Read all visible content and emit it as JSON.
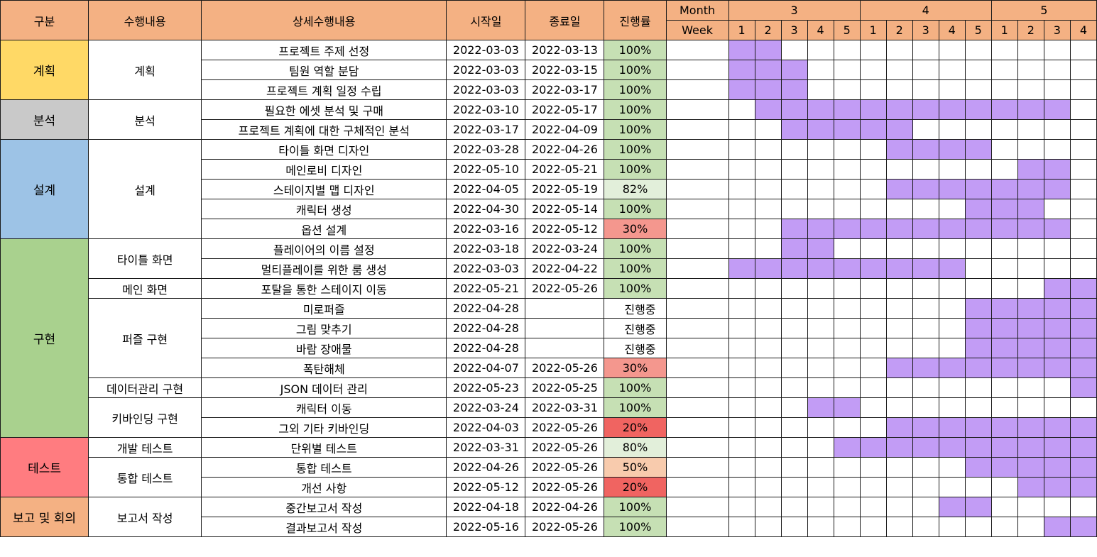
{
  "colors": {
    "header": "#f4b183",
    "bar": "#c29cf5",
    "category": {
      "계획": "#ffd966",
      "분석": "#c9c9c9",
      "설계": "#9dc3e6",
      "구현": "#a9d18e",
      "테스트": "#ff7c80",
      "보고 및 회의": "#f4b183"
    },
    "progress": {
      "100%": "#c6e0b4",
      "82%": "#e2efda",
      "80%": "#e2efda",
      "50%": "#f8cbad",
      "30%": "#f4978e",
      "20%": "#f06461",
      "진행중": "#ffffff"
    }
  },
  "headers": {
    "category": "구분",
    "task": "수행내용",
    "detail": "상세수행내용",
    "start": "시작일",
    "end": "종료일",
    "progress": "진행률",
    "month": "Month",
    "week": "Week"
  },
  "timeline": {
    "months": [
      {
        "label": "3",
        "weeks": 5
      },
      {
        "label": "4",
        "weeks": 5
      },
      {
        "label": "5",
        "weeks": 4
      }
    ],
    "weeks": [
      "1",
      "2",
      "3",
      "4",
      "5",
      "1",
      "2",
      "3",
      "4",
      "5",
      "1",
      "2",
      "3",
      "4"
    ]
  },
  "chart_data": {
    "type": "table",
    "rows": [
      {
        "category": "계획",
        "task": "계획",
        "detail": "프로젝트 주제 선정",
        "start": "2022-03-03",
        "end": "2022-03-13",
        "progress": "100%",
        "weeks": [
          1,
          1,
          0,
          0,
          0,
          0,
          0,
          0,
          0,
          0,
          0,
          0,
          0,
          0
        ]
      },
      {
        "category": "계획",
        "task": "계획",
        "detail": "팀원 역할 분담",
        "start": "2022-03-03",
        "end": "2022-03-15",
        "progress": "100%",
        "weeks": [
          1,
          1,
          1,
          0,
          0,
          0,
          0,
          0,
          0,
          0,
          0,
          0,
          0,
          0
        ]
      },
      {
        "category": "계획",
        "task": "계획",
        "detail": "프로젝트 계획 일정 수립",
        "start": "2022-03-03",
        "end": "2022-03-17",
        "progress": "100%",
        "weeks": [
          1,
          1,
          1,
          0,
          0,
          0,
          0,
          0,
          0,
          0,
          0,
          0,
          0,
          0
        ]
      },
      {
        "category": "분석",
        "task": "분석",
        "detail": "필요한 에셋 분석 및 구매",
        "start": "2022-03-10",
        "end": "2022-05-17",
        "progress": "100%",
        "weeks": [
          0,
          1,
          1,
          1,
          1,
          1,
          1,
          1,
          1,
          1,
          1,
          1,
          1,
          0
        ]
      },
      {
        "category": "분석",
        "task": "분석",
        "detail": "프로젝트 계획에 대한 구체적인 분석",
        "start": "2022-03-17",
        "end": "2022-04-09",
        "progress": "100%",
        "weeks": [
          0,
          0,
          1,
          1,
          1,
          1,
          1,
          0,
          0,
          0,
          0,
          0,
          0,
          0
        ]
      },
      {
        "category": "설계",
        "task": "설계",
        "detail": "타이틀 화면 디자인",
        "start": "2022-03-28",
        "end": "2022-04-26",
        "progress": "100%",
        "weeks": [
          0,
          0,
          0,
          0,
          0,
          0,
          1,
          1,
          1,
          1,
          0,
          0,
          0,
          0
        ]
      },
      {
        "category": "설계",
        "task": "설계",
        "detail": "메인로비 디자인",
        "start": "2022-05-10",
        "end": "2022-05-21",
        "progress": "100%",
        "weeks": [
          0,
          0,
          0,
          0,
          0,
          0,
          0,
          0,
          0,
          0,
          0,
          1,
          1,
          0
        ]
      },
      {
        "category": "설계",
        "task": "설계",
        "detail": "스테이지별 맵 디자인",
        "start": "2022-04-05",
        "end": "2022-05-19",
        "progress": "82%",
        "weeks": [
          0,
          0,
          0,
          0,
          0,
          0,
          1,
          1,
          1,
          1,
          1,
          1,
          1,
          0
        ]
      },
      {
        "category": "설계",
        "task": "설계",
        "detail": "캐릭터 생성",
        "start": "2022-04-30",
        "end": "2022-05-14",
        "progress": "100%",
        "weeks": [
          0,
          0,
          0,
          0,
          0,
          0,
          0,
          0,
          0,
          1,
          1,
          1,
          0,
          0
        ]
      },
      {
        "category": "설계",
        "task": "설계",
        "detail": "옵션 설계",
        "start": "2022-03-16",
        "end": "2022-05-12",
        "progress": "30%",
        "weeks": [
          0,
          0,
          1,
          1,
          1,
          1,
          1,
          1,
          1,
          1,
          1,
          1,
          1,
          0
        ]
      },
      {
        "category": "구현",
        "task": "타이틀 화면",
        "detail": "플레이어의 이름 설정",
        "start": "2022-03-18",
        "end": "2022-03-24",
        "progress": "100%",
        "weeks": [
          0,
          0,
          1,
          1,
          0,
          0,
          0,
          0,
          0,
          0,
          0,
          0,
          0,
          0
        ]
      },
      {
        "category": "구현",
        "task": "타이틀 화면",
        "detail": "멀티플레이를 위한 룸 생성",
        "start": "2022-03-03",
        "end": "2022-04-22",
        "progress": "100%",
        "weeks": [
          1,
          1,
          1,
          1,
          1,
          1,
          1,
          1,
          1,
          0,
          0,
          0,
          0,
          0
        ]
      },
      {
        "category": "구현",
        "task": "메인 화면",
        "detail": "포탈을 통한 스테이지 이동",
        "start": "2022-05-21",
        "end": "2022-05-26",
        "progress": "100%",
        "weeks": [
          0,
          0,
          0,
          0,
          0,
          0,
          0,
          0,
          0,
          0,
          0,
          0,
          1,
          1
        ]
      },
      {
        "category": "구현",
        "task": "퍼즐 구현",
        "detail": "미로퍼즐",
        "start": "2022-04-28",
        "end": "",
        "progress": "진행중",
        "weeks": [
          0,
          0,
          0,
          0,
          0,
          0,
          0,
          0,
          0,
          1,
          1,
          1,
          1,
          1
        ]
      },
      {
        "category": "구현",
        "task": "퍼즐 구현",
        "detail": "그림 맞추기",
        "start": "2022-04-28",
        "end": "",
        "progress": "진행중",
        "weeks": [
          0,
          0,
          0,
          0,
          0,
          0,
          0,
          0,
          0,
          1,
          1,
          1,
          1,
          1
        ]
      },
      {
        "category": "구현",
        "task": "퍼즐 구현",
        "detail": "바람 장애물",
        "start": "2022-04-28",
        "end": "",
        "progress": "진행중",
        "weeks": [
          0,
          0,
          0,
          0,
          0,
          0,
          0,
          0,
          0,
          1,
          1,
          1,
          1,
          1
        ]
      },
      {
        "category": "구현",
        "task": "퍼즐 구현",
        "detail": "폭탄해체",
        "start": "2022-04-07",
        "end": "2022-05-26",
        "progress": "30%",
        "weeks": [
          0,
          0,
          0,
          0,
          0,
          0,
          1,
          1,
          1,
          1,
          1,
          1,
          1,
          1
        ]
      },
      {
        "category": "구현",
        "task": "데이터관리 구현",
        "detail": "JSON 데이터 관리",
        "start": "2022-05-23",
        "end": "2022-05-25",
        "progress": "100%",
        "weeks": [
          0,
          0,
          0,
          0,
          0,
          0,
          0,
          0,
          0,
          0,
          0,
          0,
          0,
          1
        ]
      },
      {
        "category": "구현",
        "task": "키바인딩 구현",
        "detail": "캐릭터 이동",
        "start": "2022-03-24",
        "end": "2022-03-31",
        "progress": "100%",
        "weeks": [
          0,
          0,
          0,
          1,
          1,
          0,
          0,
          0,
          0,
          0,
          0,
          0,
          0,
          0
        ]
      },
      {
        "category": "구현",
        "task": "키바인딩 구현",
        "detail": "그외 기타 키바인딩",
        "start": "2022-04-03",
        "end": "2022-05-26",
        "progress": "20%",
        "weeks": [
          0,
          0,
          0,
          0,
          0,
          0,
          1,
          1,
          1,
          1,
          1,
          1,
          1,
          1
        ]
      },
      {
        "category": "테스트",
        "task": "개발 테스트",
        "detail": "단위별 테스트",
        "start": "2022-03-31",
        "end": "2022-05-26",
        "progress": "80%",
        "weeks": [
          0,
          0,
          0,
          0,
          1,
          1,
          1,
          1,
          1,
          1,
          1,
          1,
          1,
          1
        ]
      },
      {
        "category": "테스트",
        "task": "통합 테스트",
        "detail": "통합 테스트",
        "start": "2022-04-26",
        "end": "2022-05-26",
        "progress": "50%",
        "weeks": [
          0,
          0,
          0,
          0,
          0,
          0,
          0,
          0,
          0,
          1,
          1,
          1,
          1,
          1
        ]
      },
      {
        "category": "테스트",
        "task": "통합 테스트",
        "detail": "개선 사항",
        "start": "2022-05-12",
        "end": "2022-05-26",
        "progress": "20%",
        "weeks": [
          0,
          0,
          0,
          0,
          0,
          0,
          0,
          0,
          0,
          0,
          0,
          1,
          1,
          1
        ]
      },
      {
        "category": "보고 및 회의",
        "task": "보고서 작성",
        "detail": "중간보고서 작성",
        "start": "2022-04-18",
        "end": "2022-04-26",
        "progress": "100%",
        "weeks": [
          0,
          0,
          0,
          0,
          0,
          0,
          0,
          0,
          1,
          1,
          0,
          0,
          0,
          0
        ]
      },
      {
        "category": "보고 및 회의",
        "task": "보고서 작성",
        "detail": "결과보고서 작성",
        "start": "2022-05-16",
        "end": "2022-05-26",
        "progress": "100%",
        "weeks": [
          0,
          0,
          0,
          0,
          0,
          0,
          0,
          0,
          0,
          0,
          0,
          0,
          1,
          1
        ]
      }
    ]
  }
}
